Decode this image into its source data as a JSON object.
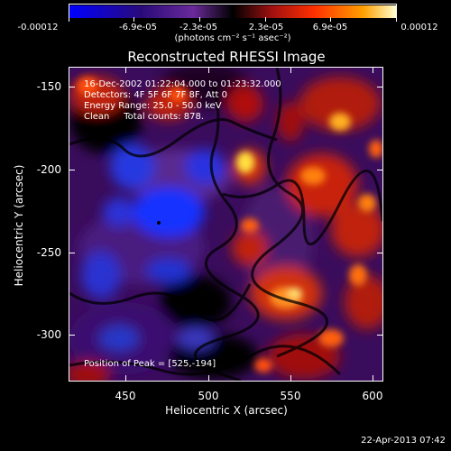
{
  "colorbar": {
    "labels": [
      "-0.00012",
      "-6.9e-05",
      "-2.3e-05",
      "2.3e-05",
      "6.9e-05",
      "0.00012"
    ],
    "unit": "(photons cm⁻² s⁻¹ asec⁻²)",
    "colors": [
      "#0000ff",
      "#3a0a6a",
      "#6a2a9a",
      "#000000",
      "#a01010",
      "#ff3000",
      "#ff9a00",
      "#ffffc0"
    ]
  },
  "title": "Reconstructed RHESSI Image",
  "info": {
    "line1": "16-Dec-2002 01:22:04.000 to 01:23:32.000",
    "line2": "Detectors: 4F 5F 6F 7F 8F, Att 0",
    "line3": "Energy Range: 25.0 - 50.0 keV",
    "line4": "Clean     Total counts: 878.",
    "peak": "Position of Peak = [525,-194]"
  },
  "axes": {
    "xlabel": "Heliocentric X (arcsec)",
    "ylabel": "Heliocentric Y (arcsec)",
    "xticks": [
      "450",
      "500",
      "550",
      "600"
    ],
    "yticks": [
      "-150",
      "-200",
      "-250",
      "-300"
    ]
  },
  "timestamp": "22-Apr-2013 07:42"
}
